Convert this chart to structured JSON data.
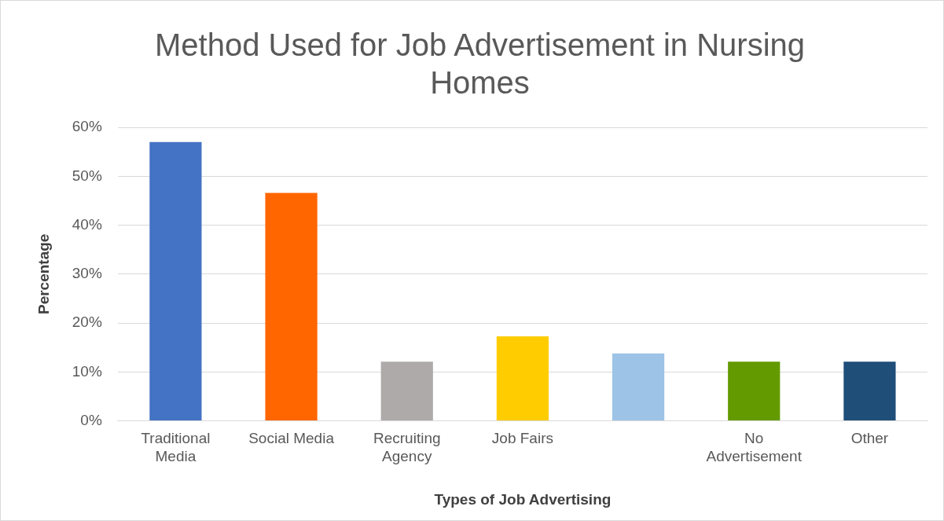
{
  "chart_data": {
    "type": "bar",
    "title": "Method Used for Job Advertisement in Nursing Homes",
    "xlabel": "Types of Job Advertising",
    "ylabel": "Percentage",
    "categories": [
      "Traditional Media",
      "Social Media",
      "Recruiting Agency",
      "Job Fairs",
      null,
      "No Advertisement",
      "Other"
    ],
    "values": [
      57,
      46.6,
      12.1,
      17.3,
      13.8,
      12.1,
      12.1
    ],
    "colors": [
      "#4472c4",
      "#ff6600",
      "#aeaaaa",
      "#ffcc00",
      "#9dc3e6",
      "#639a00",
      "#1f4e79"
    ],
    "ylim": [
      0,
      60
    ],
    "yticks": [
      {
        "value": 0,
        "label": "0%"
      },
      {
        "value": 10,
        "label": "10%"
      },
      {
        "value": 20,
        "label": "20%"
      },
      {
        "value": 30,
        "label": "30%"
      },
      {
        "value": 40,
        "label": "40%"
      },
      {
        "value": 50,
        "label": "50%"
      },
      {
        "value": 60,
        "label": "60%"
      }
    ],
    "grid": "y",
    "legend": false
  }
}
